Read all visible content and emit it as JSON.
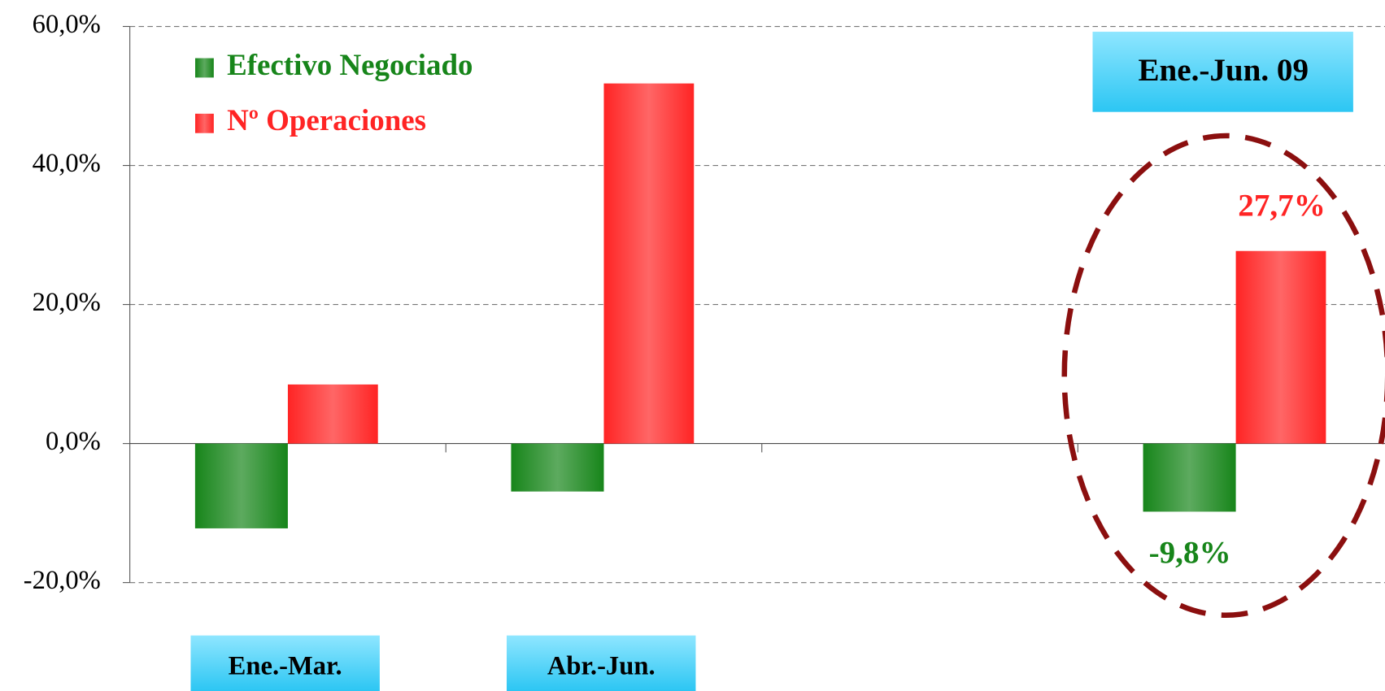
{
  "chart_data": {
    "type": "bar",
    "categories": [
      "Ene.-Mar.",
      "Abr.-Jun.",
      null,
      "Ene.-Jun. 09"
    ],
    "series": [
      {
        "name": "Efectivo Negociado",
        "color": "#17851a",
        "values": [
          -12.2,
          -6.9,
          null,
          -9.8
        ],
        "value_labels": [
          null,
          null,
          null,
          "-9,8%"
        ]
      },
      {
        "name": "Nº Operaciones",
        "color": "#ff2424",
        "values": [
          8.5,
          51.8,
          null,
          27.7
        ],
        "value_labels": [
          null,
          null,
          null,
          "27,7%"
        ]
      }
    ],
    "ylim": [
      -20,
      60
    ],
    "yticks": [
      {
        "value": -20,
        "label": "-20,0%"
      },
      {
        "value": 0,
        "label": "0,0%"
      },
      {
        "value": 20,
        "label": "20,0%"
      },
      {
        "value": 40,
        "label": "40,0%"
      },
      {
        "value": 60,
        "label": "60,0%"
      }
    ],
    "grid": true,
    "legend": "top-left"
  }
}
